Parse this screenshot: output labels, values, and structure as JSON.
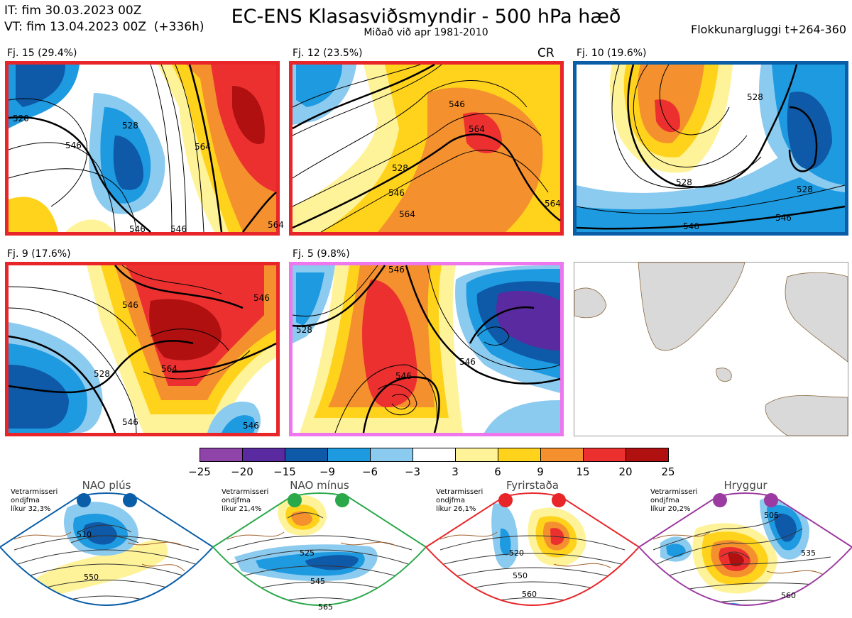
{
  "header": {
    "init_time": "IT: fim 30.03.2023 00Z",
    "valid_time": "VT: fim 13.04.2023 00Z  (+336h)",
    "title": "EC-ENS Klasasviðsmyndir - 500 hPa hæð",
    "subtitle": "Miðað við apr 1981-2010",
    "window": "Flokkunargluggi t+264-360"
  },
  "panels": [
    {
      "label": "Fj. 15 (29.4%)",
      "border": "#e8262a",
      "contours": [
        "520",
        "528",
        "546",
        "546",
        "564",
        "546",
        "564"
      ]
    },
    {
      "label": "Fj. 12 (23.5%)",
      "border": "#e8262a",
      "tag": "CR",
      "contours": [
        "546",
        "564",
        "528",
        "546",
        "564",
        "564"
      ]
    },
    {
      "label": "Fj. 10 (19.6%)",
      "border": "#0a5ea8",
      "contours": [
        "528",
        "528",
        "528",
        "546",
        "546"
      ]
    },
    {
      "label": "Fj. 9 (17.6%)",
      "border": "#e8262a",
      "contours": [
        "546",
        "546",
        "528",
        "564",
        "546",
        "546"
      ]
    },
    {
      "label": "Fj. 5 (9.8%)",
      "border": "#ee77ee",
      "contours": [
        "546",
        "528",
        "546",
        "546"
      ]
    }
  ],
  "colorbar": {
    "colors": [
      "#8e44a8",
      "#5a2aa0",
      "#0e5aa8",
      "#1e9ae0",
      "#8ccbf0",
      "#ffffff",
      "#fff39a",
      "#ffd21c",
      "#f5902e",
      "#ec3030",
      "#b01010"
    ],
    "ticks": [
      "−25",
      "−20",
      "−15",
      "−9",
      "−6",
      "−3",
      "3",
      "6",
      "9",
      "15",
      "20",
      "25"
    ]
  },
  "regimes": [
    {
      "name": "NAO plús",
      "note": "Vetrarmisseri\nondjfma\nlíkur 32,3%",
      "color": "#0a5ea8",
      "contours": [
        "510",
        "550"
      ]
    },
    {
      "name": "NAO mínus",
      "note": "Vetrarmisseri\nondjfma\nlíkur 21,4%",
      "color": "#2aa84a",
      "contours": [
        "525",
        "545",
        "565"
      ]
    },
    {
      "name": "Fyrirstaða",
      "note": "Vetrarmisseri\nondjfma\nlíkur 26,1%",
      "color": "#e8262a",
      "contours": [
        "520",
        "550",
        "560"
      ]
    },
    {
      "name": "Hryggur",
      "note": "Vetrarmisseri\nondjfma\nlíkur 20,2%",
      "color": "#9b3aa0",
      "contours": [
        "505",
        "535",
        "560"
      ]
    }
  ]
}
